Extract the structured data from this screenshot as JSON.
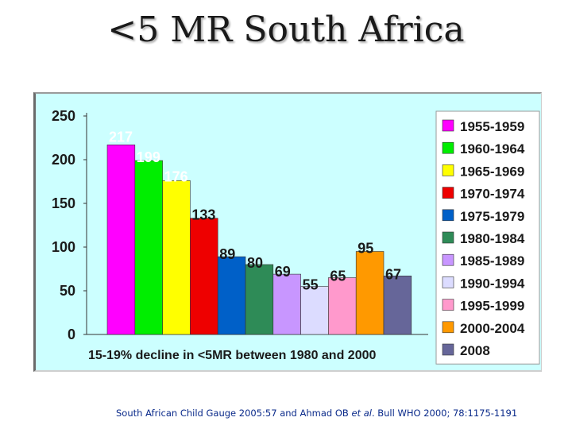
{
  "slide": {
    "title": "<5 MR South Africa"
  },
  "footnote": {
    "pre": "South African Child Gauge 2005:57 and Ahmad OB ",
    "etal": "et al",
    "post": ". Bull WHO 2000; 78:1175-1191"
  },
  "colors": {
    "plot_background": "#ccffff",
    "legend_background": "#ffffff",
    "bar_label": "#ffffff",
    "axis_text": "#1a1a1a"
  },
  "chart_data": {
    "type": "bar",
    "title": "",
    "xlabel": "",
    "ylabel": "",
    "annotation": "15-19% decline in <5MR between 1980 and 2000",
    "ylim": [
      0,
      250
    ],
    "yticks": [
      0,
      50,
      100,
      150,
      200,
      250
    ],
    "grid": false,
    "legend_position": "right",
    "series": [
      {
        "name": "1955-1959",
        "value": 217,
        "color": "#ff00ff"
      },
      {
        "name": "1960-1964",
        "value": 199,
        "color": "#00ee00"
      },
      {
        "name": "1965-1969",
        "value": 176,
        "color": "#ffff00"
      },
      {
        "name": "1970-1974",
        "value": 133,
        "color": "#ee0000"
      },
      {
        "name": "1975-1979",
        "value": 89,
        "color": "#0060c8"
      },
      {
        "name": "1980-1984",
        "value": 80,
        "color": "#2e8b57"
      },
      {
        "name": "1985-1989",
        "value": 69,
        "color": "#c896ff"
      },
      {
        "name": "1990-1994",
        "value": 55,
        "color": "#dcdcff"
      },
      {
        "name": "1995-1999",
        "value": 65,
        "color": "#ff99cc"
      },
      {
        "name": "2000-2004",
        "value": 95,
        "color": "#ff9900"
      },
      {
        "name": "2008",
        "value": 67,
        "color": "#666699"
      }
    ],
    "label_colors": [
      "#ffffff",
      "#ffffff",
      "#ffffff",
      "#1a1a1a",
      "#1a1a1a",
      "#1a1a1a",
      "#1a1a1a",
      "#1a1a1a",
      "#1a1a1a",
      "#1a1a1a",
      "#1a1a1a"
    ]
  }
}
